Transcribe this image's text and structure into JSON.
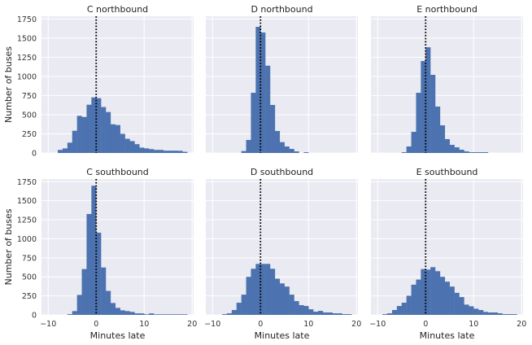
{
  "chart_data": [
    {
      "type": "bar",
      "title": "C northbound",
      "xlabel": "",
      "ylabel": "Number of buses",
      "bin_start": -8,
      "bin_width": 1,
      "values": [
        40,
        60,
        135,
        290,
        485,
        470,
        630,
        725,
        715,
        600,
        535,
        375,
        365,
        250,
        185,
        155,
        115,
        70,
        60,
        50,
        40,
        40,
        30,
        30,
        30,
        28,
        15
      ]
    },
    {
      "type": "bar",
      "title": "D northbound",
      "xlabel": "",
      "ylabel": "",
      "bin_start": -4,
      "bin_width": 1,
      "values": [
        25,
        170,
        786,
        1647,
        1573,
        1140,
        627,
        287,
        142,
        85,
        53,
        21,
        0,
        10
      ]
    },
    {
      "type": "bar",
      "title": "E northbound",
      "xlabel": "",
      "ylabel": "",
      "bin_start": -5,
      "bin_width": 1,
      "values": [
        10,
        85,
        276,
        786,
        1200,
        1380,
        1020,
        606,
        361,
        181,
        106,
        74,
        42,
        21,
        10,
        10,
        10,
        10
      ]
    },
    {
      "type": "bar",
      "title": "C southbound",
      "xlabel": "Minutes late",
      "ylabel": "Number of buses",
      "bin_start": -6,
      "bin_width": 1,
      "values": [
        10,
        50,
        262,
        602,
        1325,
        1697,
        1080,
        623,
        315,
        156,
        92,
        60,
        50,
        39,
        20,
        20,
        8,
        20,
        8,
        8,
        8,
        8,
        8,
        8,
        8
      ]
    },
    {
      "type": "bar",
      "title": "D southbound",
      "xlabel": "Minutes late",
      "ylabel": "",
      "bin_start": -8,
      "bin_width": 1,
      "values": [
        10,
        21,
        64,
        160,
        266,
        500,
        606,
        670,
        670,
        670,
        606,
        475,
        414,
        372,
        266,
        181,
        128,
        117,
        74,
        42,
        53,
        32,
        32,
        21,
        21,
        10,
        10
      ]
    },
    {
      "type": "bar",
      "title": "E southbound",
      "xlabel": "Minutes late",
      "ylabel": "",
      "bin_start": -9,
      "bin_width": 1,
      "values": [
        10,
        21,
        64,
        117,
        160,
        251,
        397,
        464,
        602,
        595,
        627,
        574,
        500,
        436,
        372,
        290,
        234,
        135,
        113,
        81,
        64,
        39,
        32,
        32,
        21,
        10,
        10,
        10
      ]
    }
  ],
  "shared": {
    "xlim": [
      -11.4,
      20.3
    ],
    "ylim": [
      0,
      1785
    ],
    "xticks": [
      -10,
      0,
      10,
      20
    ],
    "yticks": [
      0,
      250,
      500,
      750,
      1000,
      1250,
      1500,
      1750
    ],
    "xtick_labels": [
      "−10",
      "0",
      "10",
      "20"
    ],
    "ytick_labels": [
      "0",
      "250",
      "500",
      "750",
      "1000",
      "1250",
      "1500",
      "1750"
    ],
    "vline_x": 0,
    "grid": true
  },
  "colors": {
    "bar": "#4C72B0",
    "background": "#EAEAF2",
    "grid": "#FFFFFF",
    "vline": "#000000"
  }
}
